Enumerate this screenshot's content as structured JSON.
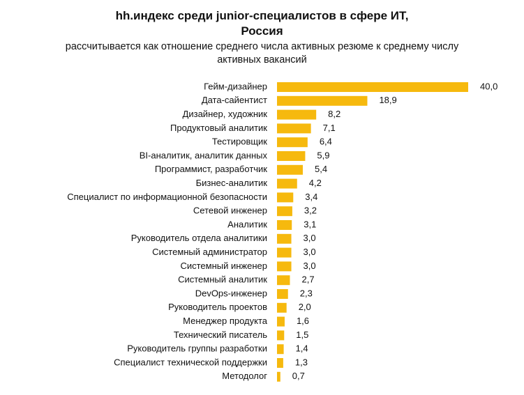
{
  "chart_data": {
    "type": "hbar",
    "title": "hh.индекс среди junior-специалистов в сфере ИТ, Россия",
    "subtitle": "рассчитывается как отношение среднего числа активных резюме к среднему числу активных вакансий",
    "color": "#f6b90e",
    "categories": [
      "Гейм-дизайнер",
      "Дата-сайентист",
      "Дизайнер, художник",
      "Продуктовый аналитик",
      "Тестировщик",
      "BI-аналитик, аналитик данных",
      "Программист, разработчик",
      "Бизнес-аналитик",
      "Специалист по информационной безопасности",
      "Сетевой инженер",
      "Аналитик",
      "Руководитель отдела аналитики",
      "Системный администратор",
      "Системный инженер",
      "Системный аналитик",
      "DevOps-инженер",
      "Руководитель проектов",
      "Менеджер продукта",
      "Технический писатель",
      "Руководитель группы разработки",
      "Специалист технической поддержки",
      "Методолог"
    ],
    "values": [
      40.0,
      18.9,
      8.2,
      7.1,
      6.4,
      5.9,
      5.4,
      4.2,
      3.4,
      3.2,
      3.1,
      3.0,
      3.0,
      3.0,
      2.7,
      2.3,
      2.0,
      1.6,
      1.5,
      1.4,
      1.3,
      0.7
    ],
    "value_labels": [
      "40,0",
      "18,9",
      "8,2",
      "7,1",
      "6,4",
      "5,9",
      "5,4",
      "4,2",
      "3,4",
      "3,2",
      "3,1",
      "3,0",
      "3,0",
      "3,0",
      "2,7",
      "2,3",
      "2,0",
      "1,6",
      "1,5",
      "1,4",
      "1,3",
      "0,7"
    ]
  }
}
